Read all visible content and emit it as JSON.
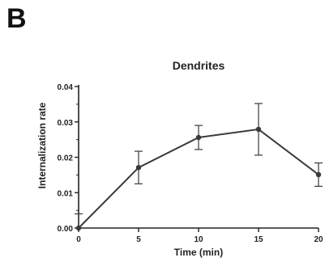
{
  "panel_label": "B",
  "chart_data": {
    "type": "line",
    "title": "Dendrites",
    "xlabel": "Time (min)",
    "ylabel": "Internalization rate",
    "x": [
      0,
      5,
      10,
      15,
      20
    ],
    "xticks": [
      "0",
      "5",
      "10",
      "15",
      "20"
    ],
    "yticks": [
      "0.00",
      "0.01",
      "0.02",
      "0.03",
      "0.04"
    ],
    "xlim": [
      0,
      20
    ],
    "ylim": [
      0,
      0.04
    ],
    "series": [
      {
        "values": [
          0.0,
          0.0171,
          0.0256,
          0.0279,
          0.0151
        ],
        "error": [
          0.004,
          0.0046,
          0.0034,
          0.0073,
          0.0033
        ]
      }
    ],
    "grid": false,
    "colors": {
      "line": "#3a3a3a",
      "axis": "#222222"
    }
  }
}
